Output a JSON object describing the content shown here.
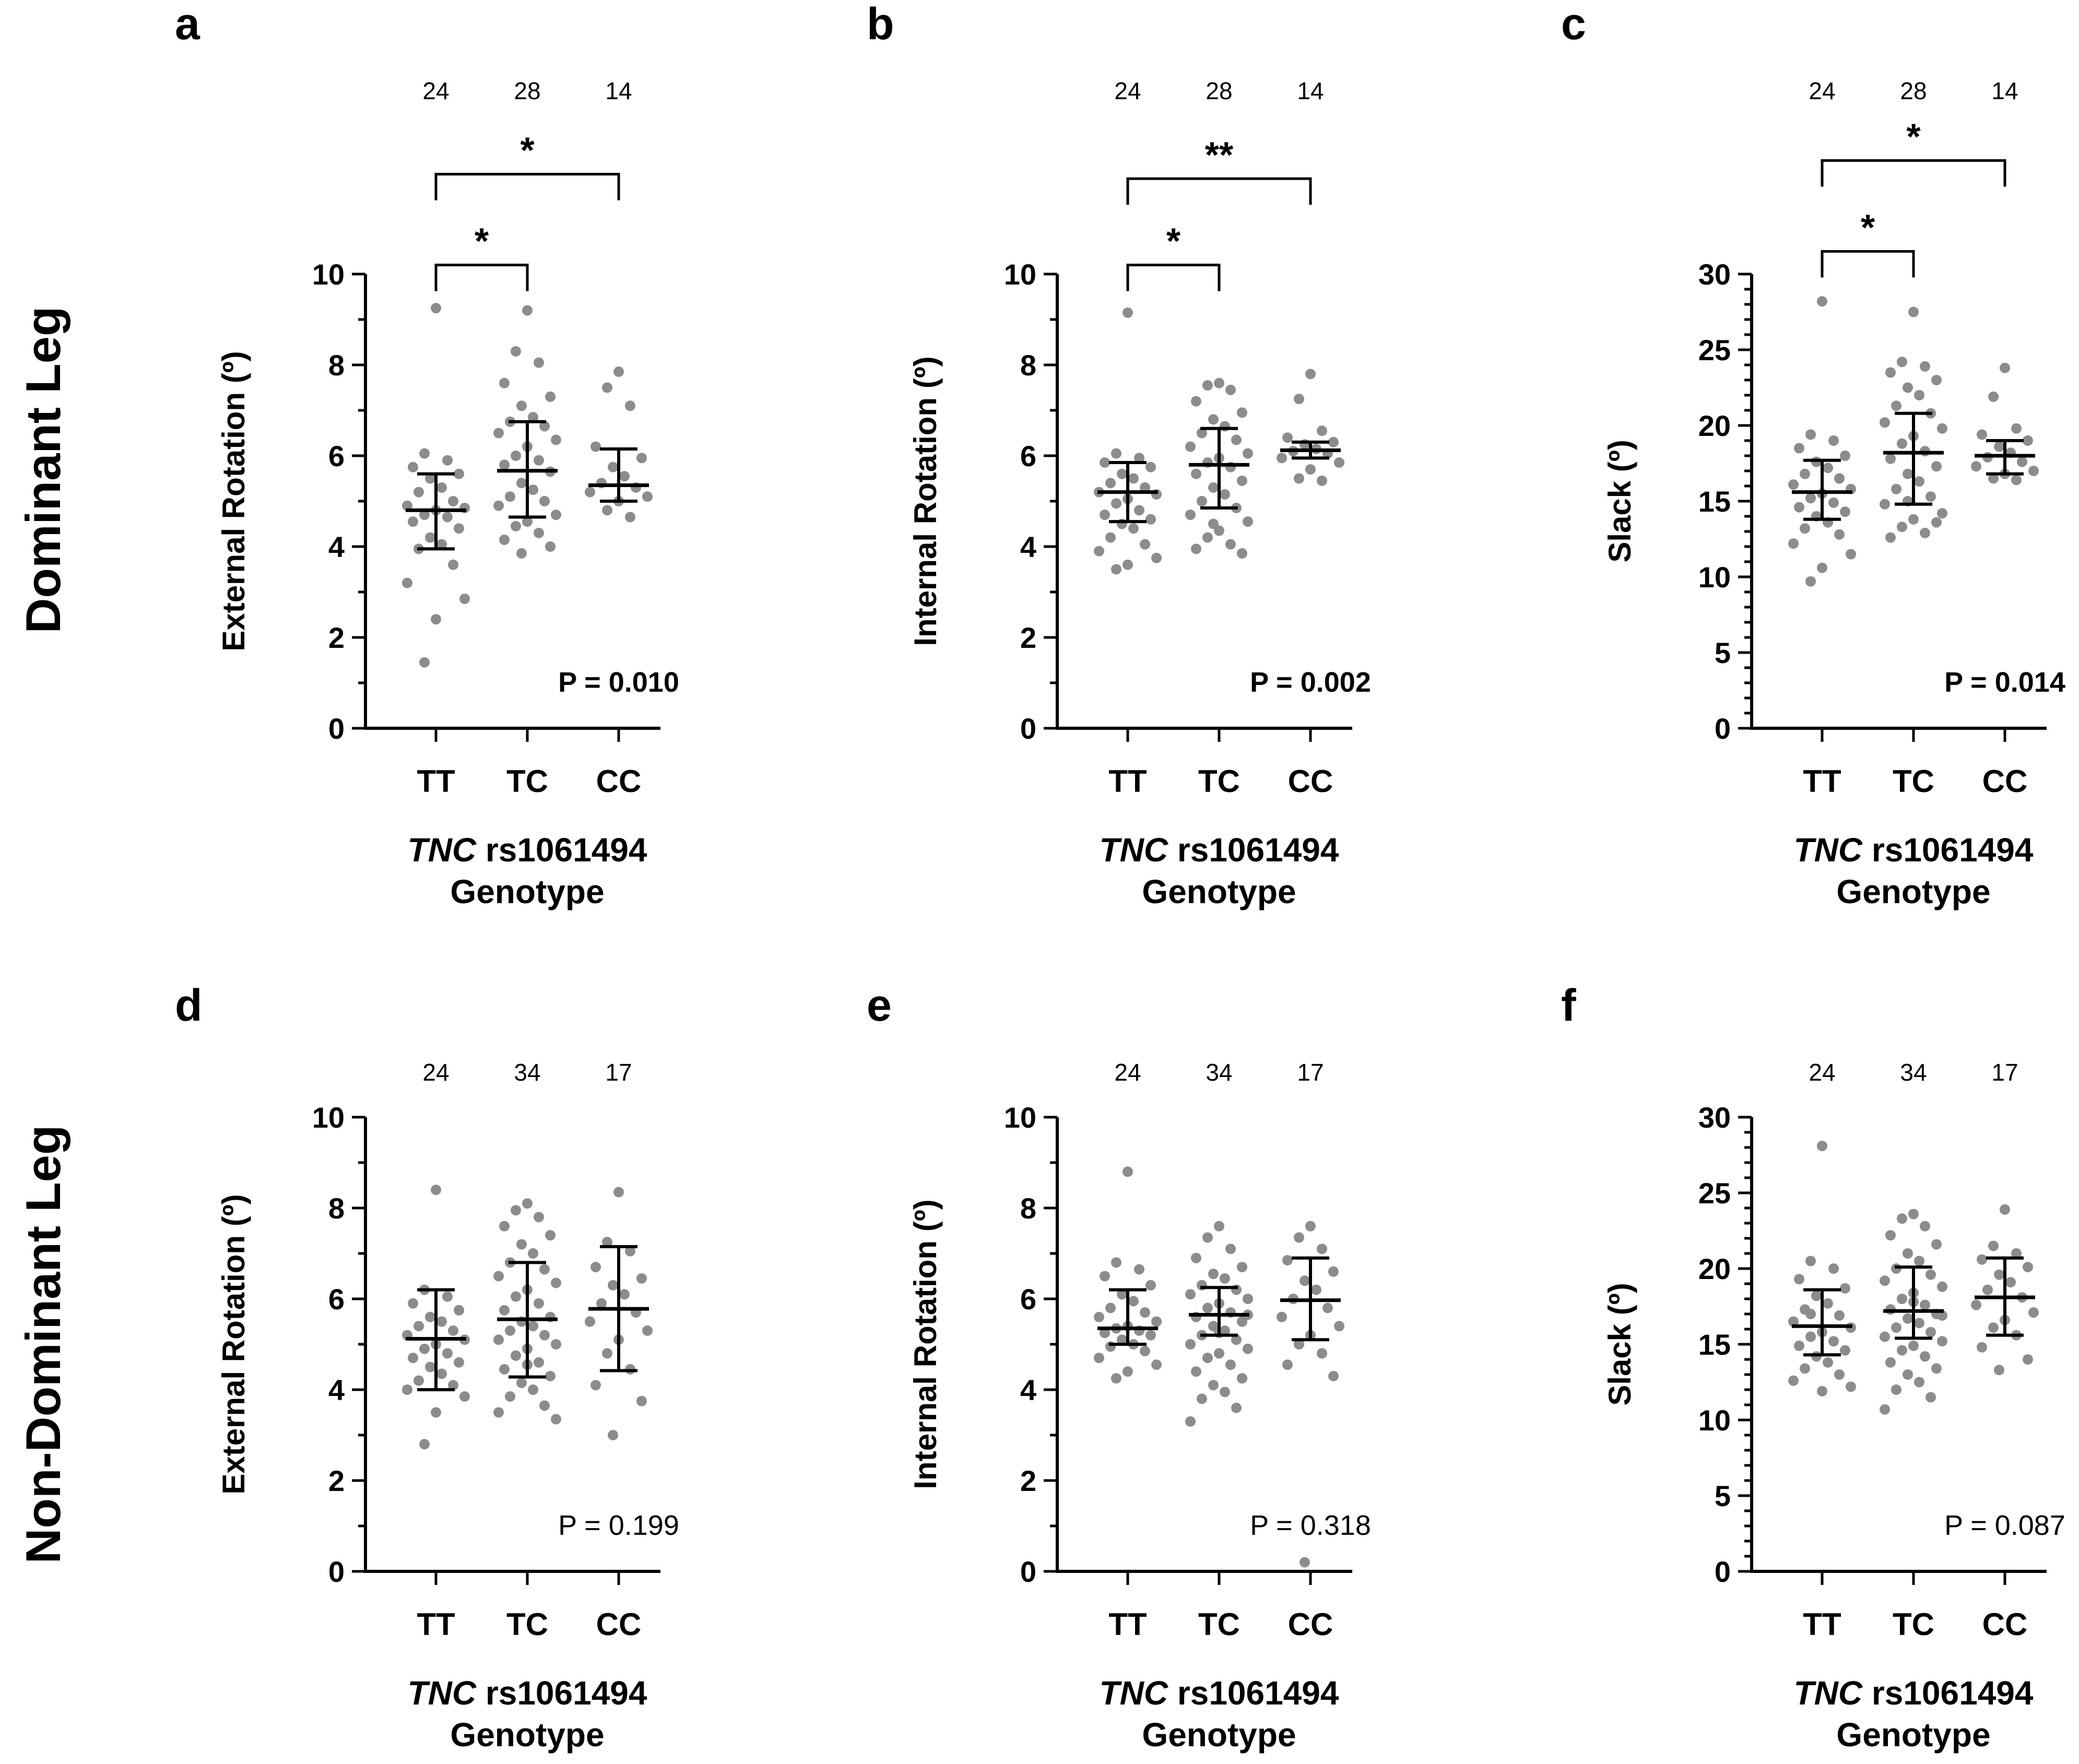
{
  "rows": [
    {
      "title": "Dominant Leg"
    },
    {
      "title": "Non-Dominant Leg"
    }
  ],
  "chart_data": [
    {
      "type": "scatter",
      "panel": "a",
      "ylabel": "External Rotation (º)",
      "xlabel_italic": "TNC",
      "xlabel_rest": " rs1061494",
      "xlabel_line2": "Genotype",
      "categories": [
        "TT",
        "TC",
        "CC"
      ],
      "n": [
        "24",
        "28",
        "14"
      ],
      "ylim": [
        0,
        10
      ],
      "yticks": [
        0,
        2,
        4,
        6,
        8,
        10
      ],
      "minor_step": 1,
      "p_value": "P = 0.010",
      "p_bold": true,
      "summary": [
        {
          "mid": 4.8,
          "low": 3.95,
          "high": 5.6
        },
        {
          "mid": 5.67,
          "low": 4.65,
          "high": 6.75
        },
        {
          "mid": 5.35,
          "low": 5.0,
          "high": 6.15
        }
      ],
      "points": [
        [
          9.25,
          6.05,
          5.9,
          5.75,
          5.6,
          5.5,
          5.3,
          5.2,
          5.0,
          4.9,
          4.85,
          4.8,
          4.7,
          4.65,
          4.55,
          4.4,
          4.2,
          4.05,
          3.95,
          3.6,
          3.2,
          2.85,
          2.4,
          1.45
        ],
        [
          9.2,
          8.3,
          8.05,
          7.6,
          7.3,
          7.1,
          6.85,
          6.75,
          6.65,
          6.5,
          6.35,
          6.2,
          6.0,
          5.9,
          5.8,
          5.65,
          5.4,
          5.25,
          5.1,
          5.0,
          4.9,
          4.7,
          4.55,
          4.45,
          4.3,
          4.15,
          4.0,
          3.85
        ],
        [
          7.85,
          7.5,
          7.1,
          6.2,
          5.95,
          5.75,
          5.55,
          5.4,
          5.3,
          5.2,
          5.1,
          5.0,
          4.8,
          4.65
        ]
      ],
      "brackets": [
        {
          "from": 0,
          "to": 1,
          "value": 10.2,
          "label": "*"
        },
        {
          "from": 0,
          "to": 2,
          "value": 12.2,
          "label": "*"
        }
      ]
    },
    {
      "type": "scatter",
      "panel": "b",
      "ylabel": "Internal Rotation (º)",
      "xlabel_italic": "TNC",
      "xlabel_rest": " rs1061494",
      "xlabel_line2": "Genotype",
      "categories": [
        "TT",
        "TC",
        "CC"
      ],
      "n": [
        "24",
        "28",
        "14"
      ],
      "ylim": [
        0,
        10
      ],
      "yticks": [
        0,
        2,
        4,
        6,
        8,
        10
      ],
      "minor_step": 1,
      "p_value": "P = 0.002",
      "p_bold": true,
      "summary": [
        {
          "mid": 5.2,
          "low": 4.55,
          "high": 5.85
        },
        {
          "mid": 5.8,
          "low": 4.85,
          "high": 6.6
        },
        {
          "mid": 6.12,
          "low": 5.95,
          "high": 6.3
        }
      ],
      "points": [
        [
          9.15,
          6.05,
          5.95,
          5.85,
          5.75,
          5.6,
          5.5,
          5.4,
          5.3,
          5.2,
          5.15,
          5.05,
          4.95,
          4.8,
          4.7,
          4.6,
          4.5,
          4.4,
          4.2,
          4.05,
          3.9,
          3.75,
          3.6,
          3.5
        ],
        [
          7.6,
          7.55,
          7.45,
          7.2,
          6.95,
          6.8,
          6.65,
          6.5,
          6.35,
          6.2,
          6.05,
          5.95,
          5.85,
          5.75,
          5.6,
          5.45,
          5.3,
          5.15,
          5.0,
          4.85,
          4.7,
          4.55,
          4.35,
          4.2,
          4.05,
          3.95,
          3.85,
          4.5
        ],
        [
          7.8,
          7.25,
          6.55,
          6.4,
          6.3,
          6.25,
          6.15,
          6.1,
          6.05,
          5.95,
          5.85,
          5.7,
          5.5,
          5.45
        ]
      ],
      "brackets": [
        {
          "from": 0,
          "to": 1,
          "value": 10.2,
          "label": "*"
        },
        {
          "from": 0,
          "to": 2,
          "value": 12.1,
          "label": "**"
        }
      ]
    },
    {
      "type": "scatter",
      "panel": "c",
      "ylabel": "Slack (º)",
      "xlabel_italic": "TNC",
      "xlabel_rest": " rs1061494",
      "xlabel_line2": "Genotype",
      "categories": [
        "TT",
        "TC",
        "CC"
      ],
      "n": [
        "24",
        "28",
        "14"
      ],
      "ylim": [
        0,
        30
      ],
      "yticks": [
        0,
        5,
        10,
        15,
        20,
        25,
        30
      ],
      "minor_step": 1,
      "p_value": "P = 0.014",
      "p_bold": true,
      "summary": [
        {
          "mid": 15.6,
          "low": 13.8,
          "high": 17.7
        },
        {
          "mid": 18.2,
          "low": 14.8,
          "high": 20.8
        },
        {
          "mid": 18.0,
          "low": 16.8,
          "high": 19.0
        }
      ],
      "points": [
        [
          28.2,
          19.4,
          19.0,
          18.5,
          18.0,
          17.6,
          17.2,
          16.8,
          16.5,
          16.1,
          15.8,
          15.5,
          15.2,
          14.9,
          14.6,
          14.3,
          14.0,
          13.6,
          13.2,
          12.8,
          12.2,
          11.5,
          10.6,
          9.7
        ],
        [
          27.5,
          24.2,
          23.9,
          23.5,
          23.0,
          22.5,
          22.0,
          21.3,
          20.8,
          20.2,
          19.8,
          19.3,
          18.8,
          18.3,
          17.8,
          17.3,
          16.8,
          16.3,
          15.8,
          15.3,
          14.8,
          14.2,
          13.8,
          13.3,
          12.9,
          12.6,
          13.6,
          15.0
        ],
        [
          23.8,
          21.9,
          19.8,
          19.4,
          19.0,
          18.6,
          18.2,
          17.9,
          17.6,
          17.3,
          17.0,
          16.8,
          16.5,
          16.4
        ]
      ],
      "brackets": [
        {
          "from": 0,
          "to": 1,
          "value": 31.5,
          "label": "*"
        },
        {
          "from": 0,
          "to": 2,
          "value": 37.5,
          "label": "*"
        }
      ]
    },
    {
      "type": "scatter",
      "panel": "d",
      "ylabel": "External Rotation (º)",
      "xlabel_italic": "TNC",
      "xlabel_rest": " rs1061494",
      "xlabel_line2": "Genotype",
      "categories": [
        "TT",
        "TC",
        "CC"
      ],
      "n": [
        "24",
        "34",
        "17"
      ],
      "ylim": [
        0,
        10
      ],
      "yticks": [
        0,
        2,
        4,
        6,
        8,
        10
      ],
      "minor_step": 1,
      "p_value": "P = 0.199",
      "p_bold": false,
      "summary": [
        {
          "mid": 5.12,
          "low": 4.0,
          "high": 6.2
        },
        {
          "mid": 5.55,
          "low": 4.28,
          "high": 6.8
        },
        {
          "mid": 5.78,
          "low": 4.42,
          "high": 7.15
        }
      ],
      "points": [
        [
          8.4,
          6.2,
          6.05,
          5.9,
          5.75,
          5.6,
          5.5,
          5.4,
          5.3,
          5.2,
          5.1,
          5.0,
          4.9,
          4.8,
          4.7,
          4.6,
          4.5,
          4.35,
          4.2,
          4.1,
          4.0,
          3.85,
          3.5,
          2.8
        ],
        [
          8.1,
          7.95,
          7.8,
          7.6,
          7.4,
          7.2,
          7.0,
          6.8,
          6.65,
          6.5,
          6.35,
          6.2,
          6.05,
          5.9,
          5.75,
          5.6,
          5.5,
          5.4,
          5.3,
          5.2,
          5.1,
          5.0,
          4.9,
          4.75,
          4.6,
          4.45,
          4.3,
          4.15,
          4.0,
          3.85,
          3.65,
          3.5,
          3.35,
          4.55
        ],
        [
          8.35,
          7.25,
          7.05,
          6.7,
          6.45,
          6.3,
          6.1,
          5.9,
          5.7,
          5.5,
          5.3,
          5.1,
          4.8,
          4.45,
          4.1,
          3.75,
          3.0
        ]
      ],
      "brackets": []
    },
    {
      "type": "scatter",
      "panel": "e",
      "ylabel": "Internal Rotation (º)",
      "xlabel_italic": "TNC",
      "xlabel_rest": " rs1061494",
      "xlabel_line2": "Genotype",
      "categories": [
        "TT",
        "TC",
        "CC"
      ],
      "n": [
        "24",
        "34",
        "17"
      ],
      "ylim": [
        0,
        10
      ],
      "yticks": [
        0,
        2,
        4,
        6,
        8,
        10
      ],
      "minor_step": 1,
      "p_value": "P = 0.318",
      "p_bold": false,
      "summary": [
        {
          "mid": 5.35,
          "low": 5.0,
          "high": 6.2
        },
        {
          "mid": 5.65,
          "low": 5.2,
          "high": 6.25
        },
        {
          "mid": 5.97,
          "low": 5.1,
          "high": 6.9
        }
      ],
      "points": [
        [
          8.8,
          6.8,
          6.65,
          6.5,
          6.3,
          6.1,
          5.95,
          5.8,
          5.7,
          5.6,
          5.5,
          5.4,
          5.35,
          5.3,
          5.25,
          5.2,
          5.1,
          5.0,
          4.95,
          4.85,
          4.7,
          4.55,
          4.4,
          4.25
        ],
        [
          7.6,
          7.35,
          7.1,
          6.9,
          6.7,
          6.55,
          6.45,
          6.3,
          6.2,
          6.1,
          6.0,
          5.9,
          5.8,
          5.7,
          5.6,
          5.5,
          5.4,
          5.3,
          5.2,
          5.1,
          5.0,
          4.9,
          4.8,
          4.7,
          4.55,
          4.4,
          4.25,
          4.1,
          3.95,
          3.8,
          3.6,
          3.3,
          5.65,
          5.25
        ],
        [
          7.6,
          7.35,
          7.1,
          6.85,
          6.6,
          6.4,
          6.2,
          6.0,
          5.8,
          5.6,
          5.4,
          5.2,
          5.0,
          4.8,
          4.55,
          4.3,
          0.2
        ]
      ],
      "brackets": []
    },
    {
      "type": "scatter",
      "panel": "f",
      "ylabel": "Slack (º)",
      "xlabel_italic": "TNC",
      "xlabel_rest": " rs1061494",
      "xlabel_line2": "Genotype",
      "categories": [
        "TT",
        "TC",
        "CC"
      ],
      "n": [
        "24",
        "34",
        "17"
      ],
      "ylim": [
        0,
        30
      ],
      "yticks": [
        0,
        5,
        10,
        15,
        20,
        25,
        30
      ],
      "minor_step": 1,
      "p_value": "P = 0.087",
      "p_bold": false,
      "summary": [
        {
          "mid": 16.2,
          "low": 14.3,
          "high": 18.6
        },
        {
          "mid": 17.2,
          "low": 15.4,
          "high": 20.1
        },
        {
          "mid": 18.1,
          "low": 15.6,
          "high": 20.7
        }
      ],
      "points": [
        [
          28.1,
          20.5,
          20.0,
          19.3,
          18.7,
          18.2,
          17.7,
          17.3,
          16.9,
          16.5,
          16.1,
          15.8,
          15.5,
          15.2,
          14.9,
          14.6,
          14.2,
          13.8,
          13.4,
          13.0,
          12.6,
          12.2,
          11.9,
          17.0
        ],
        [
          23.6,
          23.3,
          22.8,
          22.2,
          21.6,
          21.0,
          20.5,
          20.0,
          19.6,
          19.2,
          18.8,
          18.4,
          18.0,
          17.6,
          17.3,
          17.0,
          16.7,
          16.4,
          16.1,
          15.8,
          15.5,
          15.2,
          14.9,
          14.6,
          14.2,
          13.8,
          13.4,
          13.0,
          12.5,
          12.0,
          11.5,
          10.7,
          16.9,
          17.8
        ],
        [
          23.9,
          21.5,
          21.0,
          20.6,
          20.1,
          19.6,
          19.1,
          18.6,
          18.1,
          17.6,
          17.1,
          16.6,
          16.1,
          15.6,
          14.8,
          14.0,
          13.3
        ]
      ],
      "brackets": []
    }
  ]
}
